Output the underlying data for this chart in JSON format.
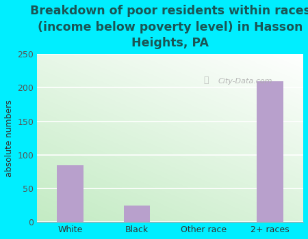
{
  "categories": [
    "White",
    "Black",
    "Other race",
    "2+ races"
  ],
  "values": [
    85,
    25,
    0,
    210
  ],
  "bar_color": "#b8a0cc",
  "title": "Breakdown of poor residents within races\n(income below poverty level) in Hasson\nHeights, PA",
  "ylabel": "absolute numbers",
  "ylim": [
    0,
    250
  ],
  "yticks": [
    0,
    50,
    100,
    150,
    200,
    250
  ],
  "background_color": "#00eeff",
  "title_color": "#1a5555",
  "title_fontsize": 12.5,
  "tick_fontsize": 9,
  "ylabel_fontsize": 9,
  "watermark": "City-Data.com",
  "plot_bg_colors": [
    "#e8f5e0",
    "#ffffff"
  ],
  "grid_color": "#ffffff",
  "bar_width": 0.4
}
